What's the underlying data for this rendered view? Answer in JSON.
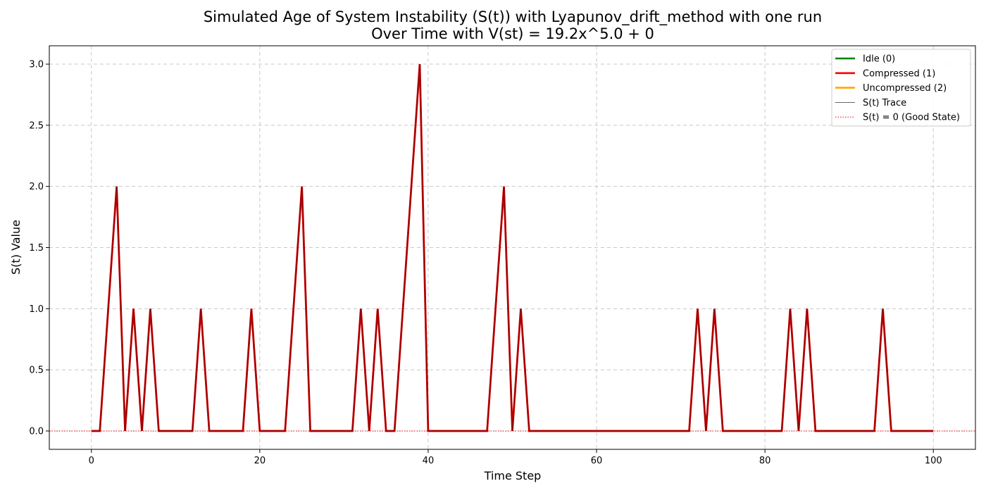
{
  "chart_data": {
    "type": "line",
    "title": "Simulated Age of System Instability (S(t)) with Lyapunov_drift_method with one run",
    "subtitle": "Over Time with V(st) = 19.2x^5.0 + 0",
    "xlabel": "Time Step",
    "ylabel": "S(t) Value",
    "xlim": [
      -5,
      105
    ],
    "ylim": [
      -0.15,
      3.15
    ],
    "xticks": [
      0,
      20,
      40,
      60,
      80,
      100
    ],
    "yticks": [
      0.0,
      0.5,
      1.0,
      1.5,
      2.0,
      2.5,
      3.0
    ],
    "xtick_labels": [
      "0",
      "20",
      "40",
      "60",
      "80",
      "100"
    ],
    "ytick_labels": [
      "0.0",
      "0.5",
      "1.0",
      "1.5",
      "2.0",
      "2.5",
      "3.0"
    ],
    "grid": true,
    "legend_position": "top-right",
    "legend": [
      {
        "label": "Idle (0)",
        "color": "#008000",
        "style": "solid-thick"
      },
      {
        "label": "Compressed (1)",
        "color": "#ff0000",
        "style": "solid-thick"
      },
      {
        "label": "Uncompressed (2)",
        "color": "#ffa500",
        "style": "solid-thick"
      },
      {
        "label": "S(t) Trace",
        "color": "#000000",
        "style": "solid-thin"
      },
      {
        "label": "S(t) = 0 (Good State)",
        "color": "#ff0000",
        "style": "dotted"
      }
    ],
    "series": [
      {
        "name": "S(t) Trace",
        "color": "#cc0000",
        "x": [
          0,
          1,
          2,
          3,
          4,
          5,
          6,
          7,
          8,
          9,
          10,
          11,
          12,
          13,
          14,
          15,
          16,
          17,
          18,
          19,
          20,
          21,
          22,
          23,
          24,
          25,
          26,
          27,
          28,
          29,
          30,
          31,
          32,
          33,
          34,
          35,
          36,
          37,
          38,
          39,
          40,
          41,
          42,
          43,
          44,
          45,
          46,
          47,
          48,
          49,
          50,
          51,
          52,
          53,
          54,
          55,
          56,
          57,
          58,
          59,
          60,
          61,
          62,
          63,
          64,
          65,
          66,
          67,
          68,
          69,
          70,
          71,
          72,
          73,
          74,
          75,
          76,
          77,
          78,
          79,
          80,
          81,
          82,
          83,
          84,
          85,
          86,
          87,
          88,
          89,
          90,
          91,
          92,
          93,
          94,
          95,
          96,
          97,
          98,
          99,
          100
        ],
        "y": [
          0,
          0,
          1,
          2,
          0,
          1,
          0,
          1,
          0,
          0,
          0,
          0,
          0,
          1,
          0,
          0,
          0,
          0,
          0,
          1,
          0,
          0,
          0,
          0,
          1,
          2,
          0,
          0,
          0,
          0,
          0,
          0,
          1,
          0,
          1,
          0,
          0,
          1,
          2,
          3,
          0,
          0,
          0,
          0,
          0,
          0,
          0,
          0,
          1,
          2,
          0,
          1,
          0,
          0,
          0,
          0,
          0,
          0,
          0,
          0,
          0,
          0,
          0,
          0,
          0,
          0,
          0,
          0,
          0,
          0,
          0,
          0,
          1,
          0,
          1,
          0,
          0,
          0,
          0,
          0,
          0,
          0,
          0,
          1,
          0,
          1,
          0,
          0,
          0,
          0,
          0,
          0,
          0,
          0,
          1,
          0,
          0,
          0,
          0,
          0,
          0
        ]
      }
    ],
    "reference_line": {
      "y": 0,
      "label": "S(t) = 0 (Good State)",
      "color": "#ff0000"
    }
  }
}
